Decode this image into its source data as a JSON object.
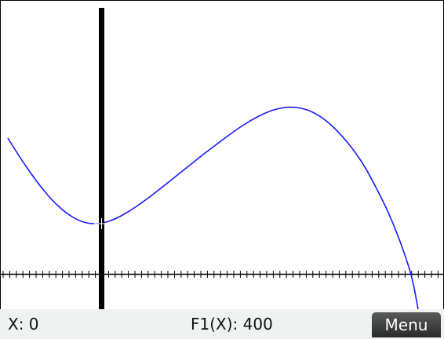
{
  "status": {
    "x_readout": "X: 0",
    "f_readout": "F1(X): 400"
  },
  "softkeys": {
    "menu_label": "Menu"
  },
  "plot": {
    "function_name": "F1",
    "curve_color": "#1a1aff",
    "axis_color": "#000000",
    "trace_cursor_color": "#000000",
    "cursor": {
      "x": 0,
      "y": 400
    }
  }
}
